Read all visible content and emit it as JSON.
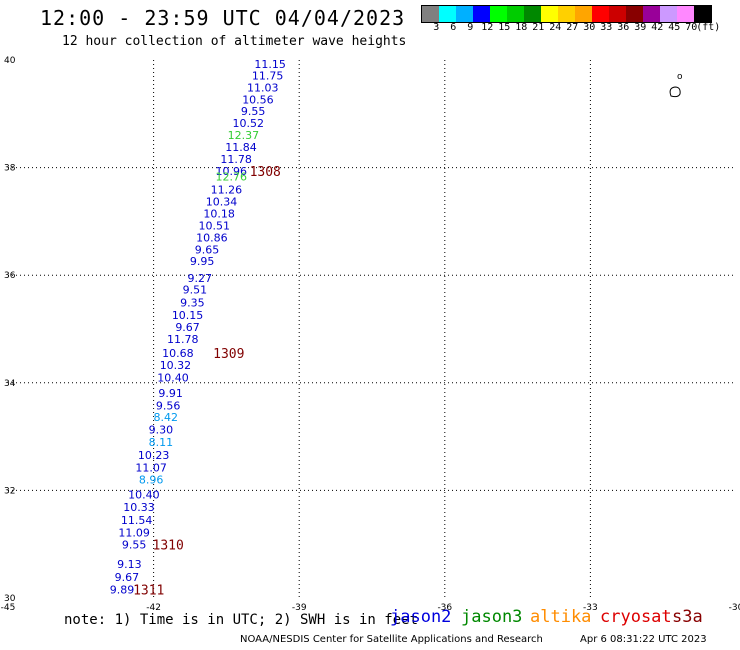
{
  "header": {
    "title": "12:00 - 23:59 UTC 04/04/2023",
    "subtitle": "12 hour collection of altimeter wave heights"
  },
  "colorbar": {
    "colors": [
      "#808080",
      "#00ffff",
      "#00b0ff",
      "#0000ff",
      "#00ff00",
      "#00cc00",
      "#008800",
      "#ffff00",
      "#ffd000",
      "#ffa500",
      "#ff0000",
      "#cc0000",
      "#880000",
      "#990099",
      "#cc99ff",
      "#ff88ff",
      "#000000"
    ],
    "labels": [
      "3",
      "6",
      "9",
      "12",
      "15",
      "18",
      "21",
      "24",
      "27",
      "30",
      "33",
      "36",
      "39",
      "42",
      "45",
      "70",
      "(ft)"
    ]
  },
  "map": {
    "lon_ticks": [
      "-45",
      "-42",
      "-39",
      "-36",
      "-33",
      "-30"
    ],
    "lat_ticks": [
      "40",
      "38",
      "36",
      "34",
      "32",
      "30"
    ],
    "lon_min": -45,
    "lon_max": -30,
    "lat_min": 30,
    "lat_max": 40,
    "island_label": "o"
  },
  "observations": [
    {
      "text": "11.15",
      "lon": -39.6,
      "lat": 39.93,
      "color": "#0000cc"
    },
    {
      "text": "11.75",
      "lon": -39.65,
      "lat": 39.71,
      "color": "#0000cc"
    },
    {
      "text": "11.03",
      "lon": -39.75,
      "lat": 39.49,
      "color": "#0000cc"
    },
    {
      "text": "10.56",
      "lon": -39.85,
      "lat": 39.27,
      "color": "#0000cc"
    },
    {
      "text": "9.55",
      "lon": -39.95,
      "lat": 39.05,
      "color": "#0000cc"
    },
    {
      "text": "10.52",
      "lon": -40.05,
      "lat": 38.83,
      "color": "#0000cc"
    },
    {
      "text": "12.37",
      "lon": -40.15,
      "lat": 38.61,
      "color": "#33cc33"
    },
    {
      "text": "11.84",
      "lon": -40.2,
      "lat": 38.38,
      "color": "#0000cc"
    },
    {
      "text": "11.78",
      "lon": -40.3,
      "lat": 38.16,
      "color": "#0000cc"
    },
    {
      "text": "10.96",
      "lon": -40.4,
      "lat": 37.94,
      "color": "#0000cc"
    },
    {
      "text": "12.76",
      "lon": -40.4,
      "lat": 37.83,
      "color": "#33cc33"
    },
    {
      "text": "11.26",
      "lon": -40.5,
      "lat": 37.59,
      "color": "#0000cc"
    },
    {
      "text": "10.34",
      "lon": -40.6,
      "lat": 37.37,
      "color": "#0000cc"
    },
    {
      "text": "10.18",
      "lon": -40.65,
      "lat": 37.15,
      "color": "#0000cc"
    },
    {
      "text": "10.51",
      "lon": -40.75,
      "lat": 36.92,
      "color": "#0000cc"
    },
    {
      "text": "10.86",
      "lon": -40.8,
      "lat": 36.7,
      "color": "#0000cc"
    },
    {
      "text": "9.65",
      "lon": -40.9,
      "lat": 36.48,
      "color": "#0000cc"
    },
    {
      "text": "9.95",
      "lon": -41.0,
      "lat": 36.26,
      "color": "#0000cc"
    },
    {
      "text": "9.27",
      "lon": -41.05,
      "lat": 35.95,
      "color": "#0000cc"
    },
    {
      "text": "9.51",
      "lon": -41.15,
      "lat": 35.73,
      "color": "#0000cc"
    },
    {
      "text": "9.35",
      "lon": -41.2,
      "lat": 35.49,
      "color": "#0000cc"
    },
    {
      "text": "10.15",
      "lon": -41.3,
      "lat": 35.26,
      "color": "#0000cc"
    },
    {
      "text": "9.67",
      "lon": -41.3,
      "lat": 35.04,
      "color": "#0000cc"
    },
    {
      "text": "11.78",
      "lon": -41.4,
      "lat": 34.81,
      "color": "#0000cc"
    },
    {
      "text": "10.68",
      "lon": -41.5,
      "lat": 34.55,
      "color": "#0000cc"
    },
    {
      "text": "10.32",
      "lon": -41.55,
      "lat": 34.33,
      "color": "#0000cc"
    },
    {
      "text": "10.40",
      "lon": -41.6,
      "lat": 34.1,
      "color": "#0000cc"
    },
    {
      "text": "9.91",
      "lon": -41.65,
      "lat": 33.81,
      "color": "#0000cc"
    },
    {
      "text": "9.56",
      "lon": -41.7,
      "lat": 33.58,
      "color": "#0000cc"
    },
    {
      "text": "8.42",
      "lon": -41.75,
      "lat": 33.36,
      "color": "#0099ee"
    },
    {
      "text": "9.30",
      "lon": -41.85,
      "lat": 33.13,
      "color": "#0000cc"
    },
    {
      "text": "8.11",
      "lon": -41.85,
      "lat": 32.9,
      "color": "#0099ee"
    },
    {
      "text": "10.23",
      "lon": -42.0,
      "lat": 32.66,
      "color": "#0000cc"
    },
    {
      "text": "11.07",
      "lon": -42.05,
      "lat": 32.43,
      "color": "#0000cc"
    },
    {
      "text": "8.96",
      "lon": -42.05,
      "lat": 32.2,
      "color": "#0099ee"
    },
    {
      "text": "10.40",
      "lon": -42.2,
      "lat": 31.92,
      "color": "#0000cc"
    },
    {
      "text": "10.33",
      "lon": -42.3,
      "lat": 31.69,
      "color": "#0000cc"
    },
    {
      "text": "11.54",
      "lon": -42.35,
      "lat": 31.45,
      "color": "#0000cc"
    },
    {
      "text": "11.09",
      "lon": -42.4,
      "lat": 31.22,
      "color": "#0000cc"
    },
    {
      "text": "9.55",
      "lon": -42.4,
      "lat": 30.99,
      "color": "#0000cc"
    },
    {
      "text": "9.13",
      "lon": -42.5,
      "lat": 30.63,
      "color": "#0000cc"
    },
    {
      "text": "9.67",
      "lon": -42.55,
      "lat": 30.39,
      "color": "#0000cc"
    },
    {
      "text": "9.89",
      "lon": -42.65,
      "lat": 30.16,
      "color": "#0000cc"
    }
  ],
  "passes": [
    {
      "text": "1308",
      "lon": -39.7,
      "lat": 37.94
    },
    {
      "text": "1309",
      "lon": -40.45,
      "lat": 34.55
    },
    {
      "text": "1310",
      "lon": -41.7,
      "lat": 30.99
    },
    {
      "text": "1311",
      "lon": -42.1,
      "lat": 30.16
    }
  ],
  "footer": {
    "note": "note: 1) Time is in UTC; 2) SWH is in feet",
    "satellites": [
      {
        "name": "jason2",
        "color": "#0000dd"
      },
      {
        "name": "jason3",
        "color": "#008800"
      },
      {
        "name": "altika",
        "color": "#ff8c00"
      },
      {
        "name": "cryosat",
        "color": "#dd0000"
      },
      {
        "name": "s3a",
        "color": "#880000"
      }
    ],
    "credit": "NOAA/NESDIS Center for Satellite Applications and Research",
    "timestamp": "Apr  6 08:31:22 UTC 2023"
  }
}
